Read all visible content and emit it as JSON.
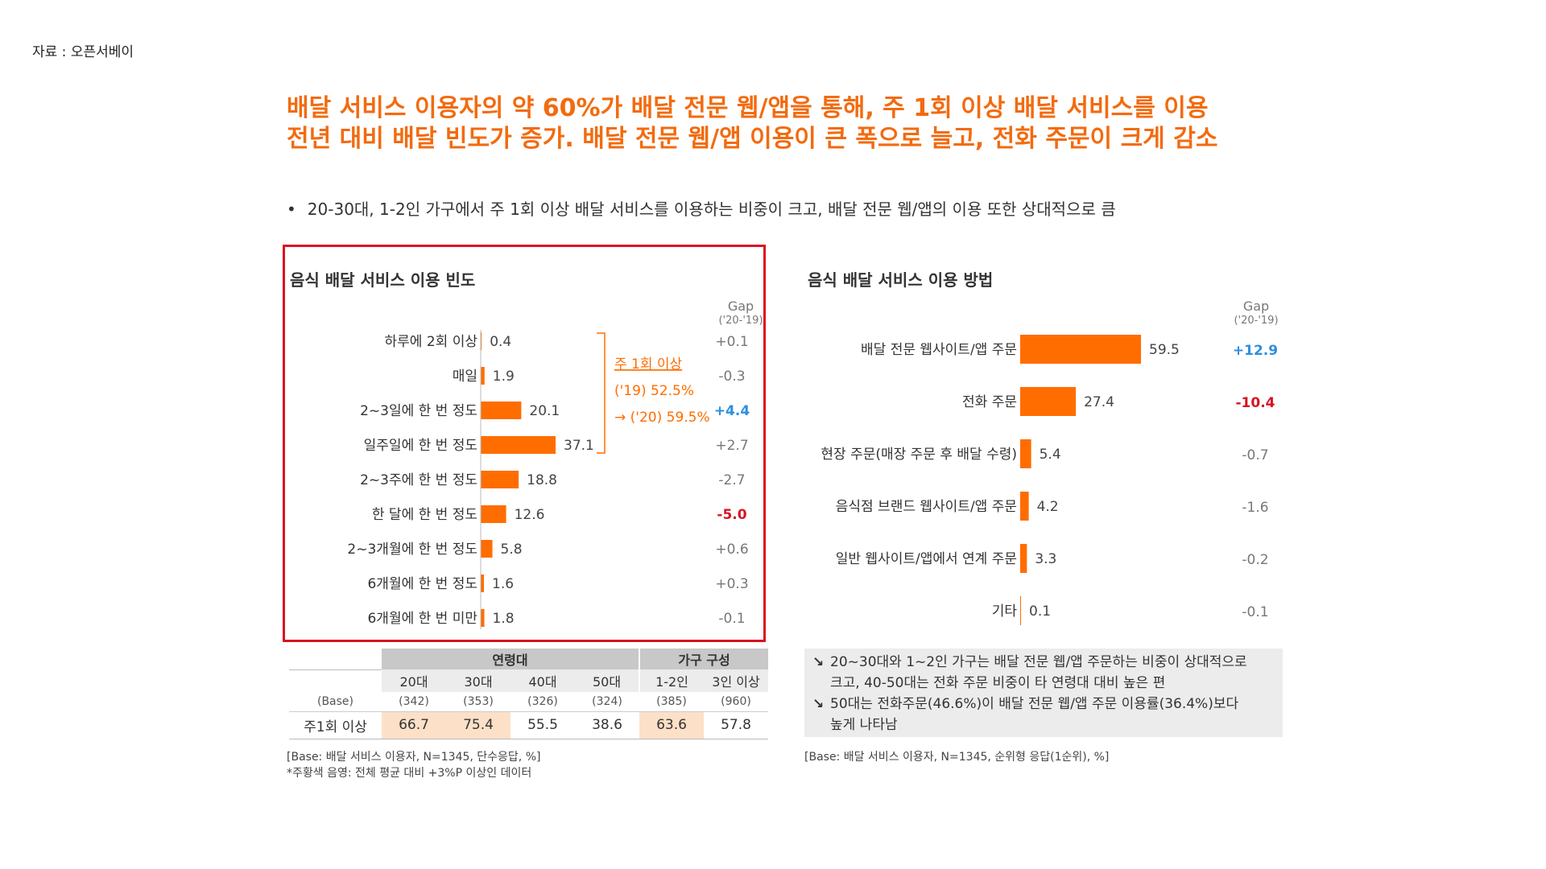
{
  "source": "자료 : 오픈서베이",
  "headline": {
    "line1": "배달 서비스 이용자의 약 60%가 배달 전문 웹/앱을 통해, 주 1회 이상 배달 서비스를 이용",
    "line2": "전년 대비 배달 빈도가 증가. 배달 전문 웹/앱 이용이 큰 폭으로 늘고, 전화 주문이 크게 감소"
  },
  "bullet": "20-30대, 1-2인 가구에서 주 1회 이상 배달 서비스를 이용하는 비중이 크고, 배달 전문 웹/앱의 이용 또한 상대적으로 큼",
  "colors": {
    "accent": "#ff6d00",
    "title": "#f26b0f",
    "positive": "#2f8fdd",
    "negative": "#d9121f",
    "highlight_cell": "#fde0c8"
  },
  "chart_data": [
    {
      "type": "bar",
      "orientation": "horizontal",
      "title": "음식 배달 서비스 이용 빈도",
      "categories": [
        "하루에 2회 이상",
        "매일",
        "2~3일에 한 번 정도",
        "일주일에 한 번 정도",
        "2~3주에 한 번 정도",
        "한 달에 한 번 정도",
        "2~3개월에 한 번 정도",
        "6개월에 한 번 정도",
        "6개월에 한 번 미만"
      ],
      "values": [
        0.4,
        1.9,
        20.1,
        37.1,
        18.8,
        12.6,
        5.8,
        1.6,
        1.8
      ],
      "value_labels": [
        "0.4",
        "1.9",
        "20.1",
        "37.1",
        "18.8",
        "12.6",
        "5.8",
        "1.6",
        "1.8"
      ],
      "gap_title": "Gap",
      "gap_subtitle": "('20-'19)",
      "gaps": [
        "+0.1",
        "-0.3",
        "+4.4",
        "+2.7",
        "-2.7",
        "-5.0",
        "+0.6",
        "+0.3",
        "-0.1"
      ],
      "gap_emphasis": [
        "",
        "",
        "positive",
        "",
        "",
        "negative",
        "",
        "",
        ""
      ],
      "annotation": {
        "title": "주 1회 이상",
        "line1": "('19) 52.5%",
        "line2": "→ ('20) 59.5%"
      },
      "xlim": [
        0,
        40
      ]
    },
    {
      "type": "bar",
      "orientation": "horizontal",
      "title": "음식 배달 서비스 이용 방법",
      "categories": [
        "배달 전문 웹사이트/앱 주문",
        "전화 주문",
        "현장 주문(매장 주문 후 배달 수령)",
        "음식점 브랜드 웹사이트/앱 주문",
        "일반 웹사이트/앱에서 연계 주문",
        "기타"
      ],
      "values": [
        59.5,
        27.4,
        5.4,
        4.2,
        3.3,
        0.1
      ],
      "value_labels": [
        "59.5",
        "27.4",
        "5.4",
        "4.2",
        "3.3",
        "0.1"
      ],
      "gap_title": "Gap",
      "gap_subtitle": "('20-'19)",
      "gaps": [
        "+12.9",
        "-10.4",
        "-0.7",
        "-1.6",
        "-0.2",
        "-0.1"
      ],
      "gap_emphasis": [
        "positive",
        "negative",
        "",
        "",
        "",
        ""
      ],
      "xlim": [
        0,
        60
      ]
    },
    {
      "type": "table",
      "group_headers": [
        "연령대",
        "가구 구성"
      ],
      "columns": [
        "20대",
        "30대",
        "40대",
        "50대",
        "1-2인",
        "3인 이상"
      ],
      "base_label": "(Base)",
      "base": [
        "(342)",
        "(353)",
        "(326)",
        "(324)",
        "(385)",
        "(960)"
      ],
      "row_label": "주1회 이상",
      "values": [
        "66.7",
        "75.4",
        "55.5",
        "38.6",
        "63.6",
        "57.8"
      ],
      "highlight": [
        true,
        true,
        false,
        false,
        true,
        false
      ]
    }
  ],
  "notes": {
    "left_base": "[Base: 배달 서비스 이용자, N=1345, 단수응답, %]",
    "left_footnote": "*주황색 음영: 전체 평균 대비 +3%P 이상인 데이터",
    "right_base": "[Base: 배달 서비스 이용자, N=1345, 순위형 응답(1순위), %]"
  },
  "callout": {
    "item1_line1": "20~30대와 1~2인 가구는 배달 전문 웹/앱 주문하는 비중이 상대적으로",
    "item1_line2": "크고, 40-50대는 전화 주문 비중이 타 연령대 대비 높은 편",
    "item2_line1": "50대는 전화주문(46.6%)이 배달 전문 웹/앱 주문 이용률(36.4%)보다",
    "item2_line2": "높게 나타남"
  }
}
